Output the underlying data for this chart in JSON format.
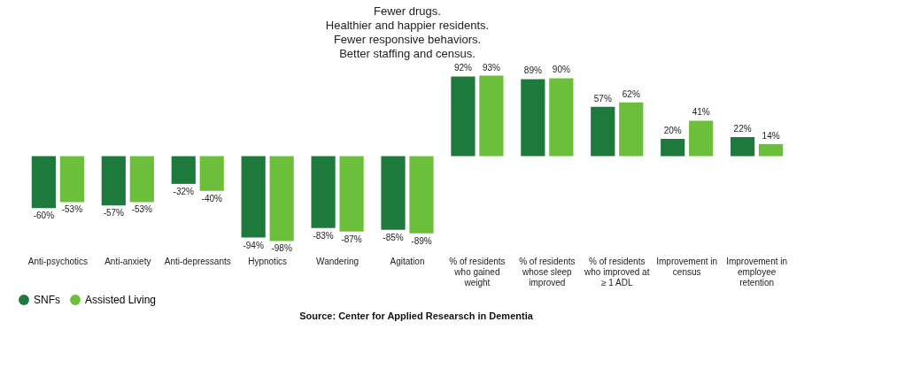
{
  "chart_data": {
    "type": "bar",
    "title": "Fewer drugs. Healthier and happier residents. Fewer responsive behaviors. Better staffing and census.",
    "categories": [
      "Anti-psychotics",
      "Anti-anxiety",
      "Anti-depressants",
      "Hypnotics",
      "Wandering",
      "Agitation",
      "% of residents who gained weight",
      "% of residents whose sleep improved",
      "% of residents who improved at ≥ 1 ADL",
      "Improvement in census",
      "Improvement in employee retention"
    ],
    "series": [
      {
        "name": "SNFs",
        "color": "#1e7a3c",
        "values": [
          -60,
          -57,
          -32,
          -94,
          -83,
          -85,
          92,
          89,
          57,
          20,
          22
        ],
        "value_labels": [
          "-60%",
          "-57%",
          "-32%",
          "-94%",
          "-83%",
          "-85%",
          "92%",
          "89%",
          "57%",
          "20%",
          "22%"
        ]
      },
      {
        "name": "Assisted Living",
        "color": "#6cbf3a",
        "values": [
          -53,
          -53,
          -40,
          -98,
          -87,
          -89,
          93,
          90,
          62,
          41,
          14
        ],
        "value_labels": [
          "-53%",
          "-53%",
          "-40%",
          "-98%",
          "-87%",
          "-89%",
          "93%",
          "90%",
          "62%",
          "41%",
          "14%"
        ]
      }
    ],
    "legend": "bottom",
    "annotations": [
      "Source: Center for Applied Researsch in Dementia"
    ]
  }
}
